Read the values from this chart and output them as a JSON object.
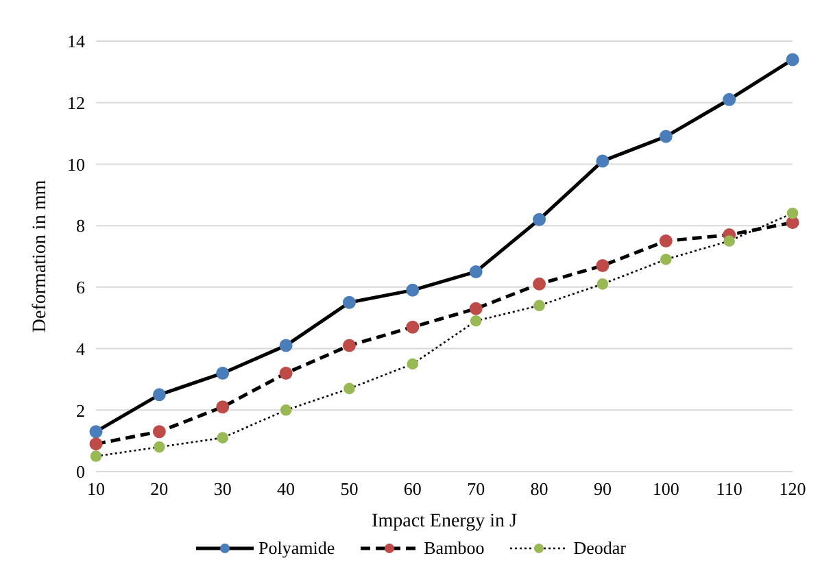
{
  "chart_data": {
    "type": "line",
    "xlabel": "Impact Energy in J",
    "ylabel": "Deformation in mm",
    "categories": [
      "10",
      "20",
      "30",
      "40",
      "50",
      "60",
      "70",
      "80",
      "90",
      "100",
      "110",
      "120"
    ],
    "series": [
      {
        "name": "Polyamide",
        "color": "#4a7ebb",
        "line_style": "solid",
        "values": [
          1.3,
          2.5,
          3.2,
          4.1,
          5.5,
          5.9,
          6.5,
          8.2,
          10.1,
          10.9,
          12.1,
          13.4
        ]
      },
      {
        "name": "Bamboo",
        "color": "#be4b48",
        "line_style": "dashed",
        "values": [
          0.9,
          1.3,
          2.1,
          3.2,
          4.1,
          4.7,
          5.3,
          6.1,
          6.7,
          7.5,
          7.7,
          8.1
        ]
      },
      {
        "name": "Deodar",
        "color": "#98b954",
        "line_style": "dotted",
        "values": [
          0.5,
          0.8,
          1.1,
          2.0,
          2.7,
          3.5,
          4.9,
          5.4,
          6.1,
          6.9,
          7.5,
          8.4
        ]
      }
    ],
    "ylim": [
      0,
      14
    ],
    "yticks": [
      0,
      2,
      4,
      6,
      8,
      10,
      12,
      14
    ],
    "grid": "y",
    "legend": "bottom",
    "marker": "circle"
  }
}
